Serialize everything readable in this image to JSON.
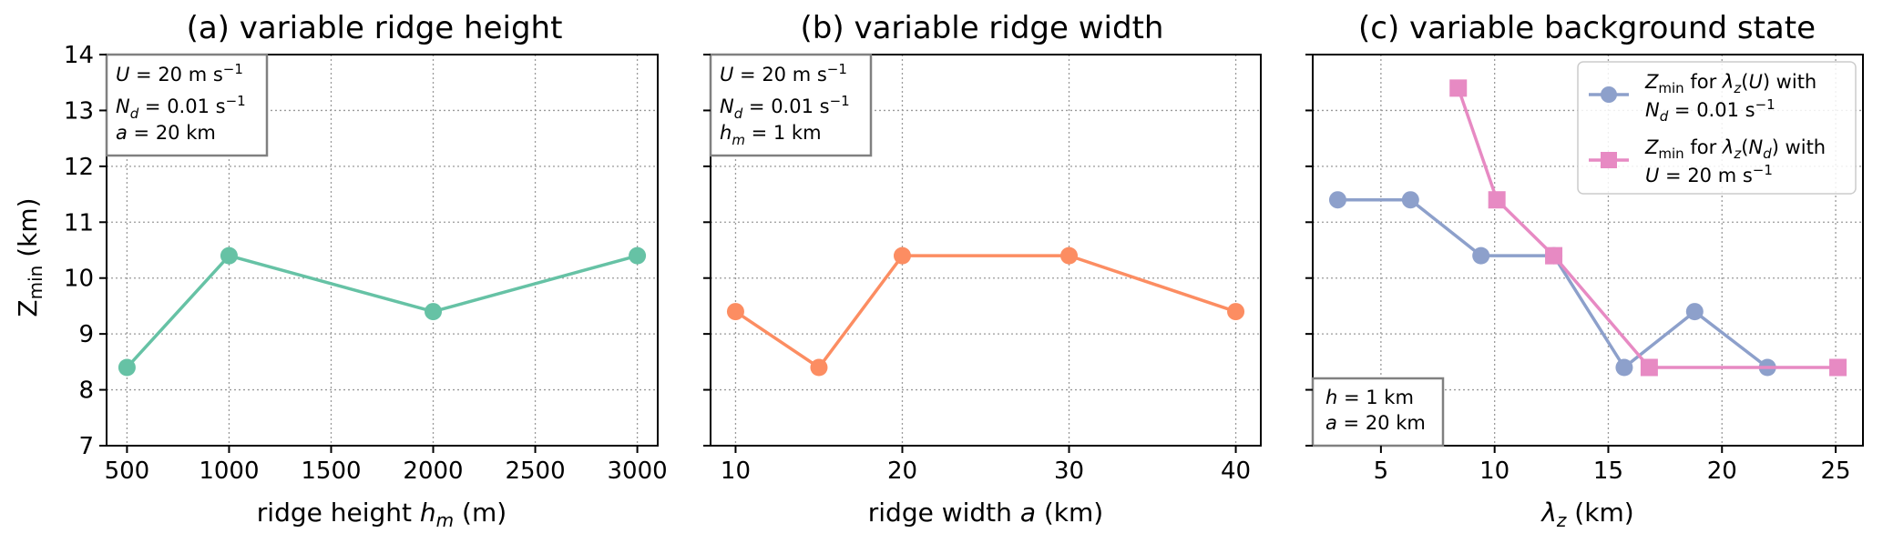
{
  "colors": {
    "green": "#66c2a5",
    "orange": "#fc8d62",
    "blue": "#8da0cb",
    "pink": "#e78ac3"
  },
  "shared": {
    "ylabel_main": "Z",
    "ylabel_sub": "min",
    "ylabel_unit": " (km)"
  },
  "chart_data": [
    {
      "type": "line",
      "title": "(a) variable ridge height",
      "xlabel_pre": "ridge height ",
      "xlabel_var": "h",
      "xlabel_sub": "m",
      "xlabel_post": " (m)",
      "xlim": [
        400,
        3100
      ],
      "ylim": [
        7,
        14
      ],
      "xticks": [
        500,
        1000,
        1500,
        2000,
        2500,
        3000
      ],
      "yticks": [
        7,
        8,
        9,
        10,
        11,
        12,
        13,
        14
      ],
      "grid": true,
      "annotation": {
        "lines": [
          "U = 20 m s⁻¹",
          "N_d = 0.01 s⁻¹",
          "a = 20 km"
        ],
        "placement": "top-left"
      },
      "series": [
        {
          "color_key": "green",
          "marker": "circle",
          "x": [
            500,
            1000,
            2000,
            3000
          ],
          "y": [
            8.4,
            10.4,
            9.4,
            10.4
          ]
        }
      ]
    },
    {
      "type": "line",
      "title": "(b) variable ridge width",
      "xlabel_pre": "ridge width ",
      "xlabel_var": "a",
      "xlabel_sub": "",
      "xlabel_post": " (km)",
      "xlim": [
        8.5,
        41.5
      ],
      "ylim": [
        7,
        14
      ],
      "xticks": [
        10,
        20,
        30,
        40
      ],
      "yticks": [
        7,
        8,
        9,
        10,
        11,
        12,
        13,
        14
      ],
      "grid": true,
      "annotation": {
        "lines": [
          "U = 20 m s⁻¹",
          "N_d = 0.01 s⁻¹",
          "h_m = 1 km"
        ],
        "placement": "top-left"
      },
      "series": [
        {
          "color_key": "orange",
          "marker": "circle",
          "x": [
            10,
            15,
            20,
            30,
            40
          ],
          "y": [
            9.4,
            8.4,
            10.4,
            10.4,
            9.4
          ]
        }
      ]
    },
    {
      "type": "line",
      "title": "(c) variable background state",
      "xlabel_pre": "",
      "xlabel_var": "λ",
      "xlabel_sub": "z",
      "xlabel_post": " (km)",
      "xlim": [
        2.0,
        26.2
      ],
      "ylim": [
        7,
        14
      ],
      "xticks": [
        5,
        10,
        15,
        20,
        25
      ],
      "yticks": [
        7,
        8,
        9,
        10,
        11,
        12,
        13,
        14
      ],
      "grid": true,
      "annotation": {
        "lines": [
          "h = 1 km",
          "a = 20 km"
        ],
        "placement": "bottom-left"
      },
      "legend": {
        "placement": "top-right"
      },
      "series": [
        {
          "name": "Z_min for λ_z(U) with N_d = 0.01 s⁻¹",
          "color_key": "blue",
          "marker": "circle",
          "x": [
            3.1,
            6.3,
            9.4,
            12.6,
            15.7,
            18.8,
            22.0
          ],
          "y": [
            11.4,
            11.4,
            10.4,
            10.4,
            8.4,
            9.4,
            8.4
          ]
        },
        {
          "name": "Z_min for λ_z(N_d) with U = 20 m s⁻¹",
          "color_key": "pink",
          "marker": "square",
          "x": [
            8.4,
            10.1,
            12.6,
            16.8,
            25.1
          ],
          "y": [
            13.4,
            11.4,
            10.4,
            8.4,
            8.4
          ]
        }
      ]
    }
  ]
}
